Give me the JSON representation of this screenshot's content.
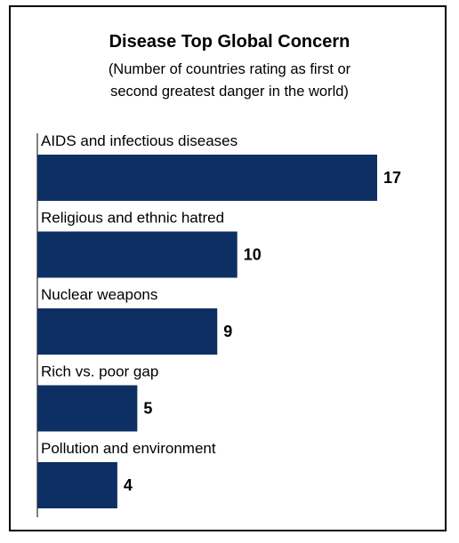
{
  "chart_data": {
    "type": "bar",
    "orientation": "horizontal",
    "title": "Disease Top Global Concern",
    "subtitle_lines": [
      "(Number of countries rating as first or",
      "second greatest danger in the world)"
    ],
    "categories": [
      "AIDS and infectious diseases",
      "Religious and ethnic hatred",
      "Nuclear weapons",
      "Rich vs. poor gap",
      "Pollution and environment"
    ],
    "values": [
      17,
      10,
      9,
      5,
      4
    ],
    "value_labels": [
      "17",
      "10",
      "9",
      "5",
      "4"
    ],
    "xlim": [
      0,
      17
    ],
    "grid": false,
    "legend": "none",
    "bar_color": "#0e2f63"
  }
}
